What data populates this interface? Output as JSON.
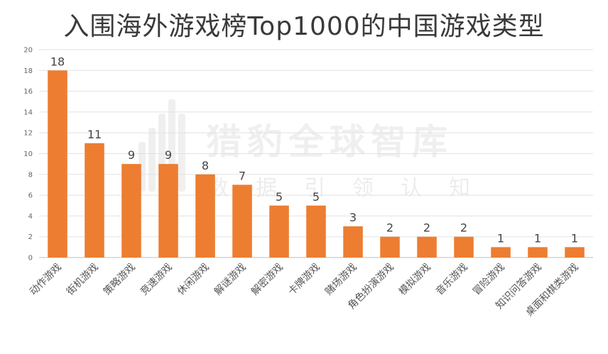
{
  "watermark": {
    "main": "猎豹全球智库",
    "sub": "数据引领认知"
  },
  "chart_data": {
    "type": "bar",
    "title": "入围海外游戏榜Top1000的中国游戏类型",
    "xlabel": "",
    "ylabel": "",
    "categories": [
      "动作游戏",
      "街机游戏",
      "策略游戏",
      "竞速游戏",
      "休闲游戏",
      "解谜游戏",
      "解密游戏",
      "卡牌游戏",
      "赌场游戏",
      "角色扮演游戏",
      "模拟游戏",
      "音乐游戏",
      "冒险游戏",
      "知识问答游戏",
      "桌面和棋类游戏"
    ],
    "values": [
      18,
      11,
      9,
      9,
      8,
      7,
      5,
      5,
      3,
      2,
      2,
      2,
      1,
      1,
      1
    ],
    "ylim": [
      0,
      20
    ],
    "yticks": [
      0,
      2,
      4,
      6,
      8,
      10,
      12,
      14,
      16,
      18,
      20
    ],
    "grid": true,
    "bar_color": "#ed7d31",
    "data_labels": true
  }
}
